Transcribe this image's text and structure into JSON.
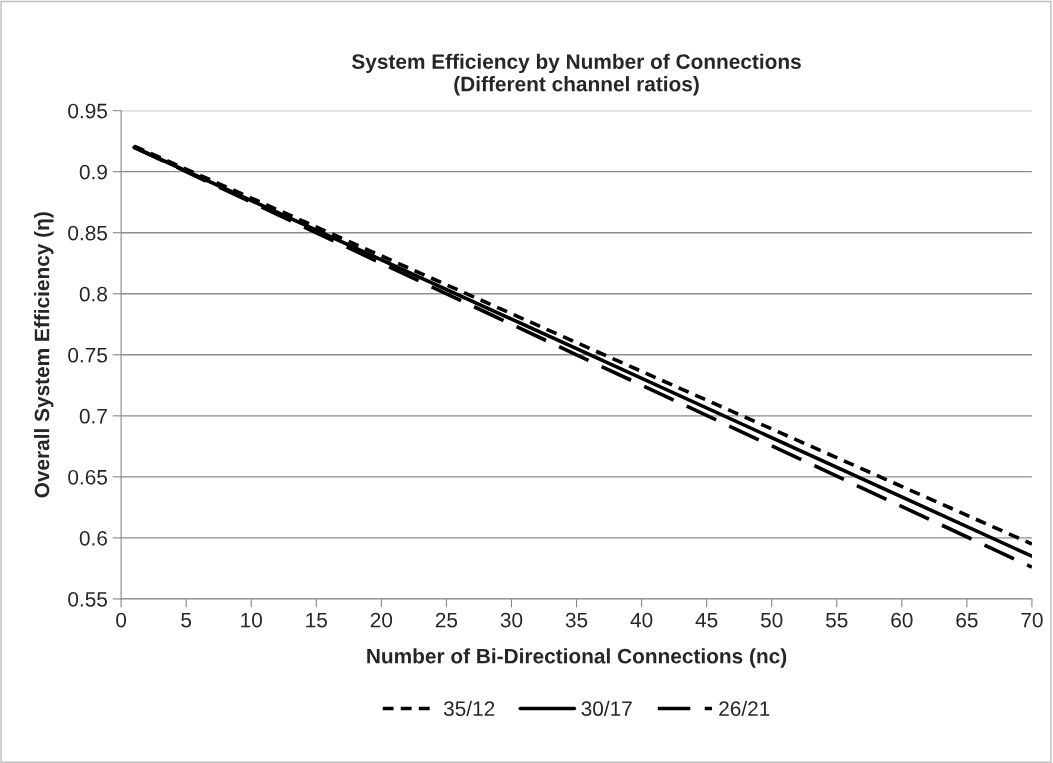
{
  "chart_data": {
    "type": "line",
    "title": "System Efficiency by Number of Connections\n(Different channel ratios)",
    "xlabel": "Number of Bi-Directional Connections (nc)",
    "ylabel": "Overall System Efficiency (η)",
    "x": [
      1,
      35,
      70
    ],
    "series": [
      {
        "name": "35/12",
        "color": "#000000",
        "line_style": "dashed",
        "values": [
          0.921,
          0.76,
          0.595
        ]
      },
      {
        "name": "30/17",
        "color": "#000000",
        "line_style": "solid",
        "values": [
          0.92,
          0.755,
          0.585
        ]
      },
      {
        "name": "26/21",
        "color": "#000000",
        "line_style": "dashdot",
        "values": [
          0.92,
          0.75,
          0.576
        ]
      }
    ],
    "xlim": [
      0,
      70
    ],
    "xticks": [
      0,
      5,
      10,
      15,
      20,
      25,
      30,
      35,
      40,
      45,
      50,
      55,
      60,
      65,
      70
    ],
    "ylim": [
      0.55,
      0.95
    ],
    "yticks": [
      0.55,
      0.6,
      0.65,
      0.7,
      0.75,
      0.8,
      0.85,
      0.9,
      0.95
    ],
    "grid": "y",
    "legend": "bottom",
    "marker": "none"
  }
}
